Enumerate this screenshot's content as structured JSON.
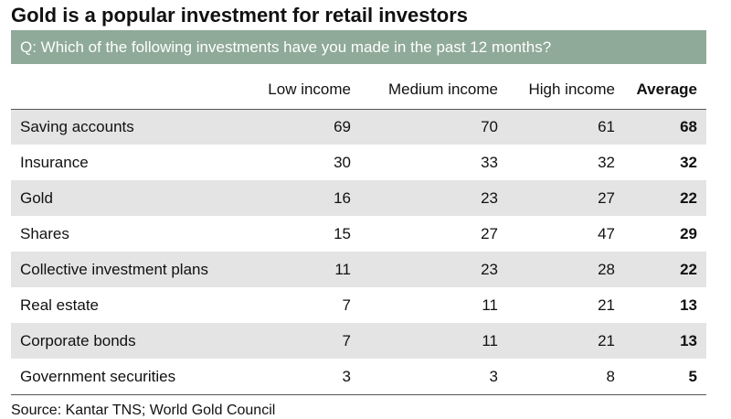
{
  "header": {
    "title": "Gold is a popular investment for retail investors",
    "question": "Q: Which of the following investments have you made in the past 12 months?"
  },
  "table": {
    "columns": [
      "Low income",
      "Medium income",
      "High income",
      "Average"
    ],
    "rows": [
      [
        "Saving accounts",
        69,
        70,
        61,
        68
      ],
      [
        "Insurance",
        30,
        33,
        32,
        32
      ],
      [
        "Gold",
        16,
        23,
        27,
        22
      ],
      [
        "Shares",
        15,
        27,
        47,
        29
      ],
      [
        "Collective investment plans",
        11,
        23,
        28,
        22
      ],
      [
        "Real estate",
        7,
        11,
        21,
        13
      ],
      [
        "Corporate bonds",
        7,
        11,
        21,
        13
      ],
      [
        "Government securities",
        3,
        3,
        8,
        5
      ]
    ]
  },
  "footer": {
    "source": "Source: Kantar TNS; World Gold Council"
  }
}
